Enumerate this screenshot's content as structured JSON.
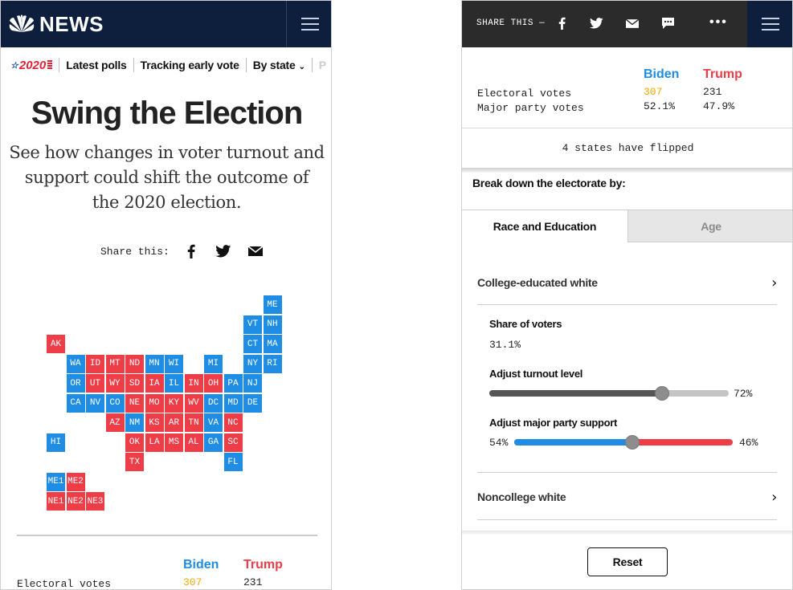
{
  "left": {
    "header": {
      "logo_text": "NEWS"
    },
    "subnav": {
      "badge": "2020",
      "items": [
        "Latest polls",
        "Tracking early vote",
        "By state",
        "P"
      ]
    },
    "title": "Swing the Election",
    "dek": "See how changes in voter turnout and support could shift the outcome of the 2020 election.",
    "share": {
      "label": "Share this:"
    },
    "map": {
      "tiles": [
        {
          "st": "ME",
          "party": "D"
        },
        {
          "st": "VT",
          "party": "D"
        },
        {
          "st": "NH",
          "party": "D"
        },
        {
          "st": "AK",
          "party": "R"
        },
        {
          "st": "CT",
          "party": "D"
        },
        {
          "st": "MA",
          "party": "D"
        },
        {
          "st": "WA",
          "party": "D"
        },
        {
          "st": "ID",
          "party": "R"
        },
        {
          "st": "MT",
          "party": "R"
        },
        {
          "st": "ND",
          "party": "R"
        },
        {
          "st": "MN",
          "party": "D"
        },
        {
          "st": "WI",
          "party": "D"
        },
        {
          "st": "MI",
          "party": "D"
        },
        {
          "st": "NY",
          "party": "D"
        },
        {
          "st": "RI",
          "party": "D"
        },
        {
          "st": "OR",
          "party": "D"
        },
        {
          "st": "UT",
          "party": "R"
        },
        {
          "st": "WY",
          "party": "R"
        },
        {
          "st": "SD",
          "party": "R"
        },
        {
          "st": "IA",
          "party": "R"
        },
        {
          "st": "IL",
          "party": "D"
        },
        {
          "st": "IN",
          "party": "R"
        },
        {
          "st": "OH",
          "party": "R"
        },
        {
          "st": "PA",
          "party": "D"
        },
        {
          "st": "NJ",
          "party": "D"
        },
        {
          "st": "CA",
          "party": "D"
        },
        {
          "st": "NV",
          "party": "D"
        },
        {
          "st": "CO",
          "party": "D"
        },
        {
          "st": "NE",
          "party": "R"
        },
        {
          "st": "MO",
          "party": "R"
        },
        {
          "st": "KY",
          "party": "R"
        },
        {
          "st": "WV",
          "party": "R"
        },
        {
          "st": "DC",
          "party": "D"
        },
        {
          "st": "MD",
          "party": "D"
        },
        {
          "st": "DE",
          "party": "D"
        },
        {
          "st": "AZ",
          "party": "R"
        },
        {
          "st": "NM",
          "party": "D"
        },
        {
          "st": "KS",
          "party": "R"
        },
        {
          "st": "AR",
          "party": "R"
        },
        {
          "st": "TN",
          "party": "R"
        },
        {
          "st": "VA",
          "party": "D"
        },
        {
          "st": "NC",
          "party": "R"
        },
        {
          "st": "HI",
          "party": "D"
        },
        {
          "st": "OK",
          "party": "R"
        },
        {
          "st": "LA",
          "party": "R"
        },
        {
          "st": "MS",
          "party": "R"
        },
        {
          "st": "AL",
          "party": "R"
        },
        {
          "st": "GA",
          "party": "D"
        },
        {
          "st": "SC",
          "party": "R"
        },
        {
          "st": "TX",
          "party": "R"
        },
        {
          "st": "FL",
          "party": "D"
        },
        {
          "st": "ME1",
          "party": "D"
        },
        {
          "st": "ME2",
          "party": "R"
        },
        {
          "st": "NE1",
          "party": "R"
        },
        {
          "st": "NE2",
          "party": "R"
        },
        {
          "st": "NE3",
          "party": "R"
        }
      ]
    },
    "totals": {
      "biden": "Biden",
      "trump": "Trump",
      "ev_label": "Electoral votes",
      "ev_biden": "307",
      "ev_trump": "231"
    }
  },
  "right": {
    "share_header": {
      "label": "SHARE THIS —"
    },
    "totals": {
      "biden": "Biden",
      "trump": "Trump",
      "ev_label": "Electoral votes",
      "ev_biden": "307",
      "ev_trump": "231",
      "mpv_label": "Major party votes",
      "mpv_biden": "52.1%",
      "mpv_trump": "47.9%"
    },
    "flipped": "4 states have flipped",
    "breakdown": "Break down the electorate by:",
    "tabs": [
      "Race and Education",
      "Age"
    ],
    "group1": "College-educated white",
    "share_of_voters_label": "Share of voters",
    "share_of_voters_value": "31.1%",
    "turnout_label": "Adjust turnout level",
    "turnout_value": "72%",
    "turnout_level": 0.72,
    "support_label": "Adjust major party support",
    "support_biden": "54%",
    "support_trump": "46%",
    "support_level": 0.54,
    "group2": "Noncollege white",
    "reset": "Reset"
  }
}
